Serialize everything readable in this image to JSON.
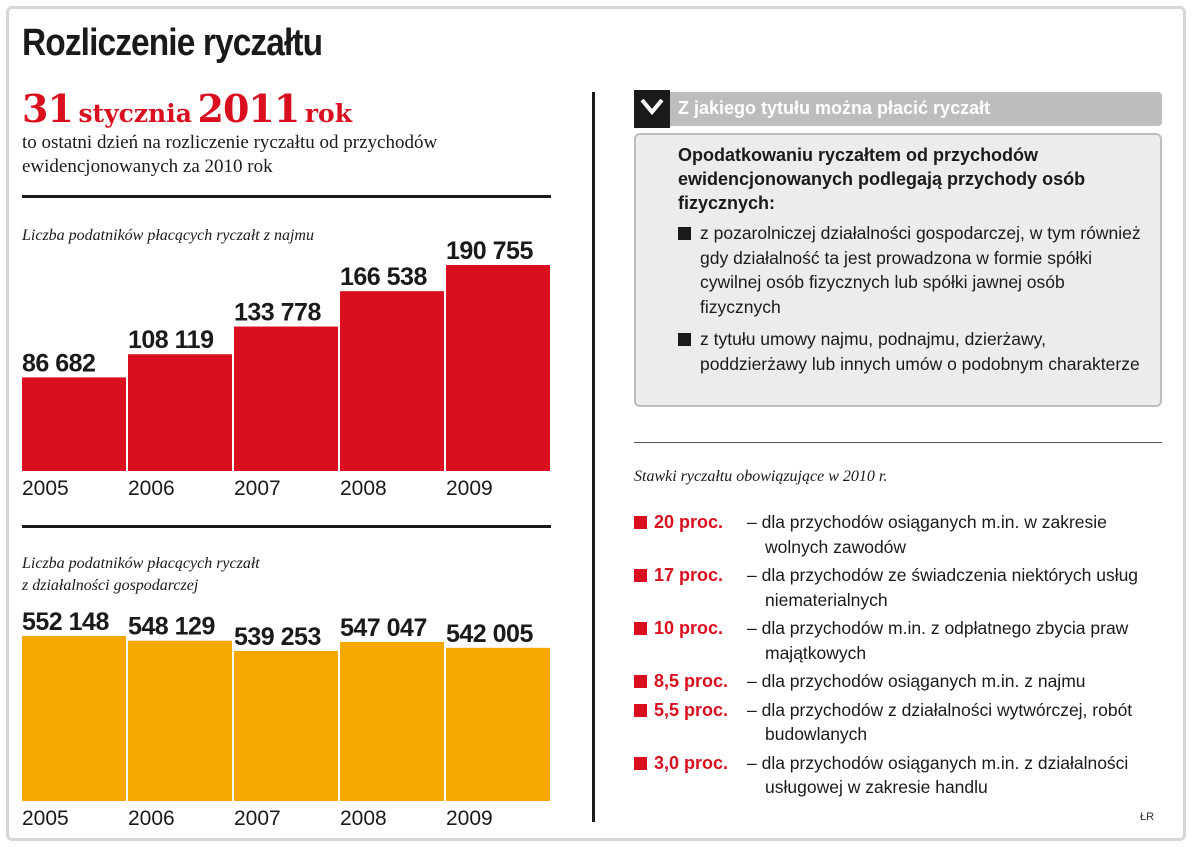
{
  "title": "Rozliczenie ryczałtu",
  "deadline": {
    "day": "31",
    "month": "stycznia",
    "year": "2011",
    "suffix": "rok",
    "description": "to ostatni dzień na rozliczenie ryczałtu od przychodów ewidencjonowanych za 2010 rok"
  },
  "chart_data": [
    {
      "type": "bar",
      "title": "Liczba podatników płacących ryczałt z najmu",
      "categories": [
        "2005",
        "2006",
        "2007",
        "2008",
        "2009"
      ],
      "values": [
        86682,
        108119,
        133778,
        166538,
        190755
      ],
      "labels": [
        "86 682",
        "108 119",
        "133 778",
        "166 538",
        "190 755"
      ],
      "color": "#d90f1f",
      "ylim": [
        0,
        190755
      ],
      "grid": false,
      "xlabel": "",
      "ylabel": ""
    },
    {
      "type": "bar",
      "title_lines": [
        "Liczba podatników płacących ryczałt",
        "z działalności gospodarczej"
      ],
      "categories": [
        "2005",
        "2006",
        "2007",
        "2008",
        "2009"
      ],
      "values": [
        552148,
        548129,
        539253,
        547047,
        542005
      ],
      "labels": [
        "552 148",
        "548 129",
        "539 253",
        "547 047",
        "542 005"
      ],
      "color": "#f5a800",
      "grid": false,
      "xlabel": "",
      "ylabel": ""
    }
  ],
  "info_box": {
    "heading": "Z jakiego tytułu można płacić ryczałt",
    "intro": "Opodatkowaniu ryczałtem od przychodów ewidencjonowanych podlegają przychody osób fizycznych:",
    "items": [
      "z pozarolniczej działalności gospodarczej, w tym również gdy działalność ta jest prowadzona w formie spółki cywilnej osób fizycznych lub spółki jawnej osób fizycznych",
      "z tytułu umowy najmu, podnajmu, dzierżawy, poddzierżawy lub innych umów o podobnym charakterze"
    ]
  },
  "rates": {
    "title": "Stawki ryczałtu obowiązujące w 2010 r.",
    "items": [
      {
        "rate": "20 proc.",
        "desc": "– dla przychodów osiąganych m.in. w zakresie wolnych zawodów"
      },
      {
        "rate": "17 proc.",
        "desc": "– dla przychodów ze świadczenia niektórych usług niematerialnych"
      },
      {
        "rate": "10 proc.",
        "desc": "– dla przychodów m.in. z odpłatnego zbycia praw majątkowych"
      },
      {
        "rate": "8,5 proc.",
        "desc": "– dla przychodów osiąganych m.in. z najmu"
      },
      {
        "rate": "5,5 proc.",
        "desc": "– dla przychodów z działalności wytwórczej, robót budowlanych"
      },
      {
        "rate": "3,0 proc.",
        "desc": "– dla przychodów osiąganych m.in. z działalności usługowej w zakresie handlu"
      }
    ]
  },
  "credit": "ŁR",
  "colors": {
    "accent_red": "#d90f1f",
    "accent_orange": "#f5a800",
    "box_gray": "#bdbdbd"
  }
}
